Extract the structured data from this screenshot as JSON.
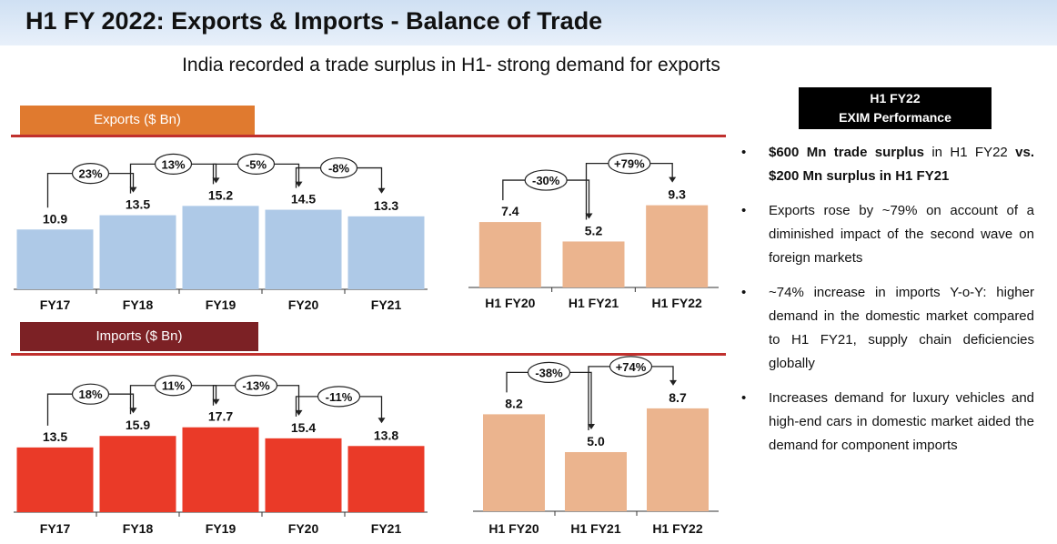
{
  "title": "H1 FY 2022: Exports & Imports - Balance of Trade",
  "subtitle": "India recorded a trade surplus in H1- strong demand for exports",
  "exports_label": "Exports ($ Bn)",
  "imports_label": "Imports ($ Bn)",
  "colors": {
    "exports_bar": "#aec9e7",
    "imports_bar": "#ea3a28",
    "half_bar": "#ebb48e",
    "exports_label_bg": "#e07a2f",
    "imports_label_bg": "#7c2125",
    "rule": "#c0302d"
  },
  "exim": {
    "line1": "H1 FY22",
    "line2": "EXIM Performance"
  },
  "bullets": [
    {
      "bold_a": "$600 Mn trade surplus",
      "text_a": " in H1 FY22 ",
      "bold_b": "vs. $200 Mn surplus in H1 FY21"
    },
    {
      "text": "Exports rose by ~79% on account of a diminished impact of the second wave on foreign markets"
    },
    {
      "text": "~74% increase in imports Y-o-Y: higher demand in the domestic market compared to H1 FY21, supply chain deficiencies globally"
    },
    {
      "text": "Increases demand for luxury vehicles and high-end cars in domestic market aided the demand for component imports"
    }
  ],
  "bullet_symbol": "•",
  "chart_data": [
    {
      "id": "exports_annual",
      "type": "bar",
      "title": "Exports ($ Bn)",
      "categories": [
        "FY17",
        "FY18",
        "FY19",
        "FY20",
        "FY21"
      ],
      "values": [
        10.9,
        13.5,
        15.2,
        14.5,
        13.3
      ],
      "value_labels": [
        "10.9",
        "13.5",
        "15.2",
        "14.5",
        "13.3"
      ],
      "growth": [
        "23%",
        "13%",
        "-5%",
        "-8%"
      ],
      "color": "#aec9e7"
    },
    {
      "id": "exports_half",
      "type": "bar",
      "categories": [
        "H1 FY20",
        "H1 FY21",
        "H1 FY22"
      ],
      "values": [
        7.4,
        5.2,
        9.3
      ],
      "value_labels": [
        "7.4",
        "5.2",
        "9.3"
      ],
      "growth": [
        "-30%",
        "+79%"
      ],
      "color": "#ebb48e"
    },
    {
      "id": "imports_annual",
      "type": "bar",
      "title": "Imports ($ Bn)",
      "categories": [
        "FY17",
        "FY18",
        "FY19",
        "FY20",
        "FY21"
      ],
      "values": [
        13.5,
        15.9,
        17.7,
        15.4,
        13.8
      ],
      "value_labels": [
        "13.5",
        "15.9",
        "17.7",
        "15.4",
        "13.8"
      ],
      "growth": [
        "18%",
        "11%",
        "-13%",
        "-11%"
      ],
      "color": "#ea3a28"
    },
    {
      "id": "imports_half",
      "type": "bar",
      "categories": [
        "H1 FY20",
        "H1 FY21",
        "H1 FY22"
      ],
      "values": [
        8.2,
        5.0,
        8.7
      ],
      "value_labels": [
        "8.2",
        "5.0",
        "8.7"
      ],
      "growth": [
        "-38%",
        "+74%"
      ],
      "color": "#ebb48e"
    }
  ]
}
